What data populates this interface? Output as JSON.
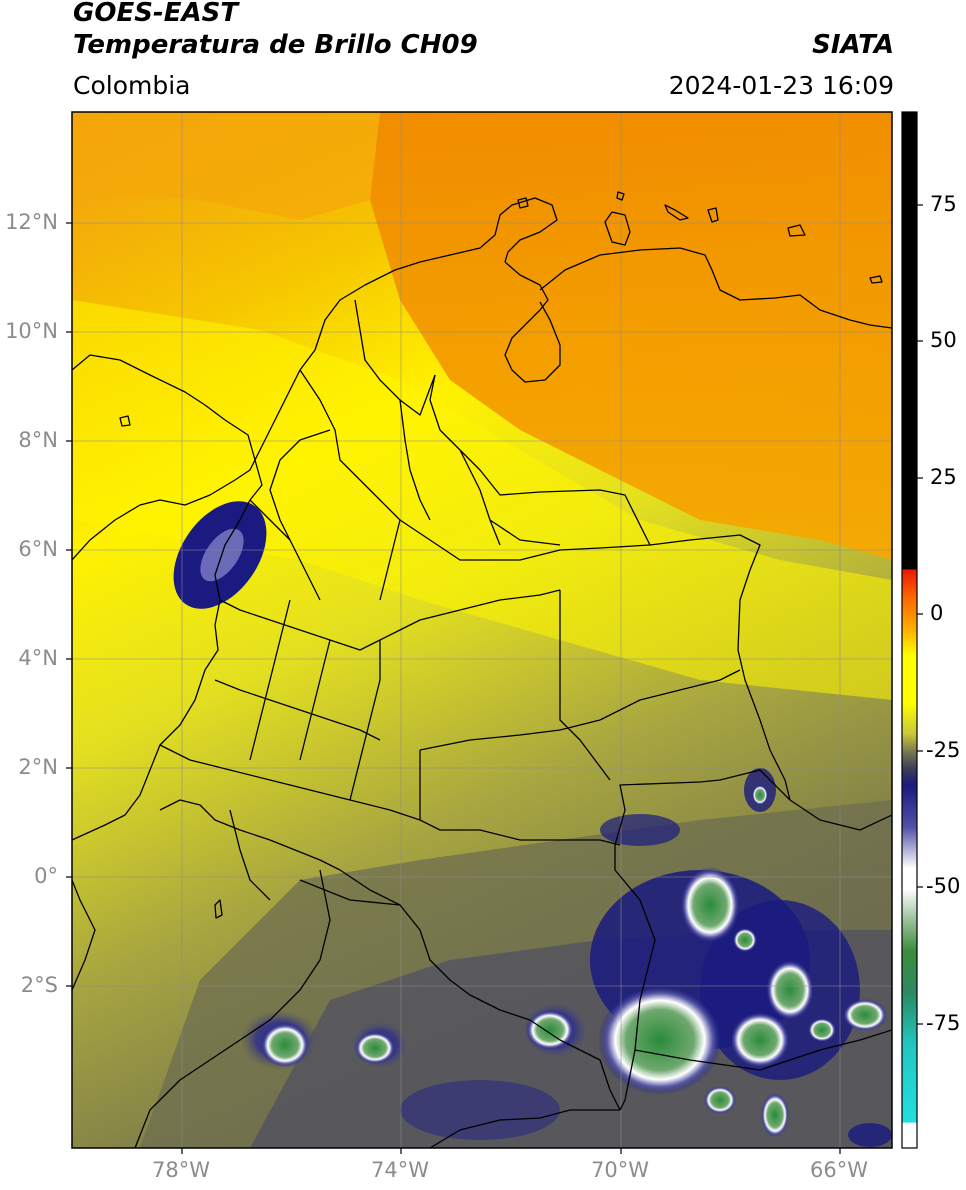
{
  "header": {
    "title_line1": "GOES-EAST",
    "title_line2": "Temperatura de Brillo CH09",
    "brand": "SIATA",
    "region": "Colombia",
    "datetime": "2024-01-23 16:09"
  },
  "map": {
    "lat_ticks": [
      "12°N",
      "10°N",
      "8°N",
      "6°N",
      "4°N",
      "2°N",
      "0°",
      "2°S"
    ],
    "lon_ticks": [
      "78°W",
      "74°W",
      "70°W",
      "66°W"
    ]
  },
  "colorbar": {
    "ticks": [
      "75",
      "50",
      "25",
      "0",
      "-25",
      "-50",
      "-75"
    ],
    "colors": {
      "black": "#000000",
      "red": "#e82000",
      "orange": "#ff9d00",
      "yellow": "#ffff00",
      "olive": "#8d8d3b",
      "navy": "#1a1a80",
      "white": "#ffffff",
      "green": "#3c8d3c",
      "cyan": "#22d6d0"
    }
  },
  "field_colors": {
    "orange": "#f5a000",
    "yellow": "#ffff00",
    "olive": "#a4a43e",
    "dark_olive": "#6f6f4c",
    "navy": "#1a1a80",
    "white": "#ffffff",
    "green": "#3d8a3d"
  }
}
